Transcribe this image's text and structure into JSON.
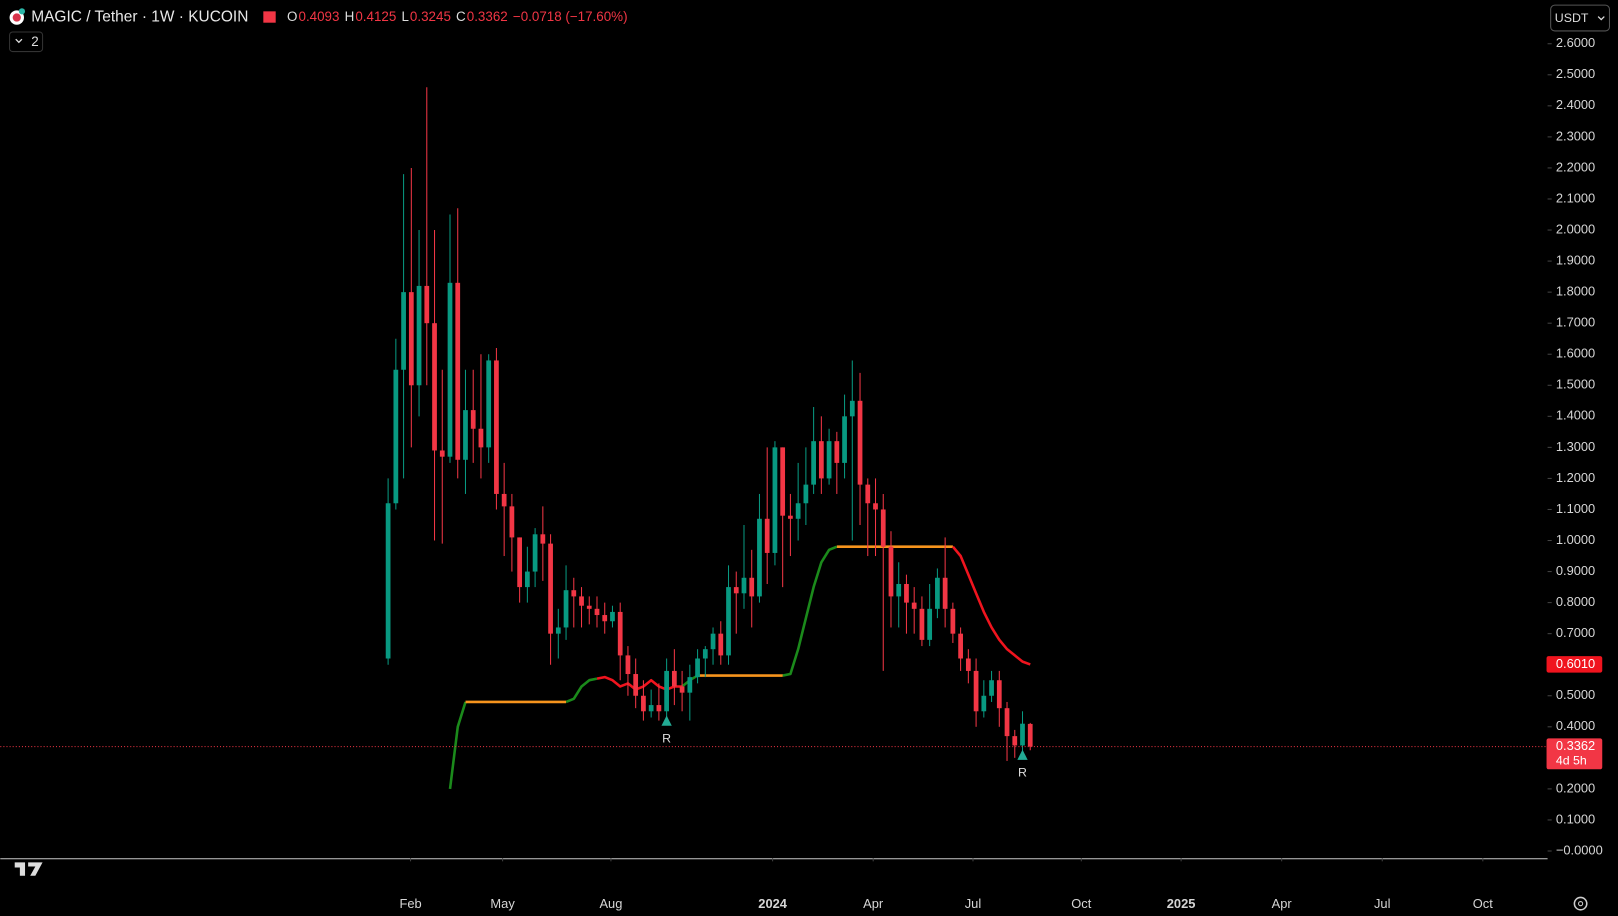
{
  "chart_data": {
    "type": "candlestick",
    "title": "MAGIC / Tether · 1W · KUCOIN",
    "ohlc": [
      {
        "label": "O",
        "value": "0.4093"
      },
      {
        "label": "H",
        "value": "0.4125"
      },
      {
        "label": "L",
        "value": "0.3245"
      },
      {
        "label": "C",
        "value": "0.3362"
      }
    ],
    "change": "−0.0718 (−17.60%)",
    "indicators_count": "2",
    "currency": "USDT",
    "up_color": "#089981",
    "down_color": "#f23645",
    "grid": false,
    "categories": [
      null,
      null,
      null,
      null,
      null,
      null,
      null,
      null,
      null,
      null,
      null,
      null,
      null,
      null,
      null,
      null,
      null,
      null,
      null,
      null,
      null,
      null,
      null,
      null,
      null,
      null,
      null,
      null,
      null,
      null,
      null,
      null,
      null,
      null,
      null,
      null,
      null,
      null,
      null,
      null,
      null,
      null,
      null,
      null,
      null,
      null,
      null,
      null,
      null,
      null,
      null,
      null,
      null,
      null,
      null,
      null,
      null,
      null,
      null,
      null,
      null,
      null,
      null,
      null,
      null,
      null,
      null,
      null,
      null,
      null,
      null,
      null,
      null,
      null,
      null,
      null,
      null,
      null,
      null,
      null,
      null,
      null,
      null,
      null
    ],
    "open": [
      0.62,
      1.12,
      1.55,
      1.8,
      1.5,
      1.82,
      1.7,
      1.29,
      1.27,
      1.83,
      1.26,
      1.42,
      1.36,
      1.3,
      1.58,
      1.15,
      1.11,
      1.01,
      0.85,
      0.9,
      1.02,
      0.99,
      0.7,
      0.72,
      0.84,
      0.82,
      0.79,
      0.78,
      0.76,
      0.74,
      0.77,
      0.63,
      0.57,
      0.5,
      0.45,
      0.47,
      0.45,
      0.58,
      0.53,
      0.51,
      0.56,
      0.62,
      0.65,
      0.7,
      0.63,
      0.85,
      0.83,
      0.88,
      0.82,
      1.07,
      0.96,
      1.3,
      1.08,
      1.07,
      1.12,
      1.18,
      1.32,
      1.2,
      1.32,
      1.25,
      1.4,
      1.45,
      1.18,
      1.12,
      1.1,
      0.98,
      0.82,
      0.86,
      0.8,
      0.78,
      0.68,
      0.78,
      0.88,
      0.78,
      0.7,
      0.62,
      0.58,
      0.45,
      0.5,
      0.55,
      0.46,
      0.37,
      0.34,
      0.4093
    ],
    "high": [
      1.2,
      1.65,
      2.18,
      2.2,
      2.0,
      2.46,
      2.0,
      1.55,
      2.05,
      2.07,
      1.55,
      1.55,
      1.6,
      1.6,
      1.62,
      1.25,
      1.15,
      1.01,
      0.98,
      1.04,
      1.11,
      1.02,
      0.78,
      0.92,
      0.88,
      0.85,
      0.82,
      0.82,
      0.8,
      0.79,
      0.8,
      0.66,
      0.62,
      0.55,
      0.52,
      0.54,
      0.62,
      0.65,
      0.58,
      0.6,
      0.65,
      0.66,
      0.72,
      0.74,
      0.92,
      0.9,
      1.05,
      0.97,
      1.15,
      1.3,
      1.32,
      1.3,
      1.15,
      1.25,
      1.3,
      1.43,
      1.4,
      1.36,
      1.35,
      1.47,
      1.58,
      1.54,
      1.2,
      1.2,
      1.15,
      1.03,
      0.93,
      0.89,
      0.85,
      0.82,
      0.86,
      0.91,
      1.01,
      0.8,
      0.72,
      0.65,
      0.62,
      0.55,
      0.58,
      0.58,
      0.48,
      0.39,
      0.45,
      0.4125
    ],
    "low": [
      0.6,
      1.1,
      1.2,
      1.3,
      1.4,
      1.5,
      1.0,
      0.99,
      1.25,
      1.2,
      1.15,
      1.25,
      1.2,
      1.25,
      1.1,
      0.95,
      0.9,
      0.8,
      0.8,
      0.85,
      0.87,
      0.6,
      0.62,
      0.68,
      0.72,
      0.72,
      0.73,
      0.72,
      0.7,
      0.72,
      0.55,
      0.5,
      0.46,
      0.42,
      0.43,
      0.42,
      0.43,
      0.47,
      0.45,
      0.42,
      0.54,
      0.56,
      0.6,
      0.6,
      0.6,
      0.7,
      0.78,
      0.72,
      0.8,
      0.86,
      0.92,
      0.85,
      0.95,
      1.0,
      1.05,
      1.15,
      1.15,
      1.18,
      1.15,
      1.2,
      1.0,
      1.05,
      0.95,
      0.95,
      0.58,
      0.72,
      0.72,
      0.7,
      0.7,
      0.66,
      0.66,
      0.75,
      0.72,
      0.67,
      0.58,
      0.54,
      0.4,
      0.43,
      0.48,
      0.4,
      0.29,
      0.3,
      0.32,
      0.3245
    ],
    "close": [
      1.12,
      1.55,
      1.8,
      1.5,
      1.82,
      1.7,
      1.29,
      1.27,
      1.83,
      1.26,
      1.42,
      1.36,
      1.3,
      1.58,
      1.15,
      1.11,
      1.01,
      0.85,
      0.9,
      1.02,
      0.99,
      0.7,
      0.72,
      0.84,
      0.82,
      0.79,
      0.78,
      0.76,
      0.74,
      0.77,
      0.63,
      0.57,
      0.5,
      0.45,
      0.47,
      0.45,
      0.58,
      0.53,
      0.51,
      0.56,
      0.62,
      0.65,
      0.7,
      0.63,
      0.85,
      0.83,
      0.88,
      0.82,
      1.07,
      0.96,
      1.3,
      1.08,
      1.07,
      1.12,
      1.18,
      1.32,
      1.2,
      1.32,
      1.25,
      1.4,
      1.45,
      1.18,
      1.12,
      1.1,
      0.98,
      0.82,
      0.86,
      0.8,
      0.78,
      0.68,
      0.78,
      0.88,
      0.78,
      0.7,
      0.62,
      0.58,
      0.45,
      0.5,
      0.55,
      0.46,
      0.37,
      0.34,
      0.41,
      0.3362
    ],
    "series": [
      {
        "color": "#1b8a1b",
        "values": [
          null,
          null,
          null,
          null,
          null,
          null,
          null,
          null,
          0.2,
          0.4,
          0.48,
          null,
          null,
          null,
          null,
          null,
          null,
          null,
          null,
          null,
          null,
          null,
          null,
          0.48,
          0.49,
          0.53,
          0.55,
          0.555,
          null,
          null,
          null,
          null,
          null,
          null,
          null,
          null,
          null,
          null,
          0.53,
          0.55,
          0.565,
          null,
          null,
          null,
          null,
          null,
          null,
          null,
          null,
          null,
          null,
          0.565,
          0.57,
          0.65,
          0.75,
          0.85,
          0.93,
          0.97,
          0.98,
          null,
          null,
          null,
          null,
          null,
          null,
          null,
          null,
          null,
          null,
          null,
          null,
          null,
          null,
          null,
          null,
          null,
          null,
          null,
          null,
          null,
          null,
          null,
          null,
          null
        ]
      },
      {
        "color": "#f7941d",
        "values": [
          null,
          null,
          null,
          null,
          null,
          null,
          null,
          null,
          null,
          null,
          0.48,
          0.48,
          0.48,
          0.48,
          0.48,
          0.48,
          0.48,
          0.48,
          0.48,
          0.48,
          0.48,
          0.48,
          0.48,
          0.48,
          null,
          null,
          null,
          null,
          null,
          null,
          null,
          null,
          null,
          null,
          null,
          null,
          null,
          null,
          null,
          null,
          0.565,
          0.565,
          0.565,
          0.565,
          0.565,
          0.565,
          0.565,
          0.565,
          0.565,
          0.565,
          0.565,
          0.565,
          null,
          null,
          null,
          null,
          null,
          null,
          0.98,
          0.98,
          0.98,
          0.98,
          0.98,
          0.98,
          0.98,
          0.98,
          0.98,
          0.98,
          0.98,
          0.98,
          0.98,
          0.98,
          0.98,
          0.98,
          null,
          null,
          null,
          null,
          null,
          null,
          null,
          null,
          null,
          null
        ]
      },
      {
        "color": "#f0141e",
        "values": [
          null,
          null,
          null,
          null,
          null,
          null,
          null,
          null,
          null,
          null,
          null,
          null,
          null,
          null,
          null,
          null,
          null,
          null,
          null,
          null,
          null,
          null,
          null,
          null,
          null,
          null,
          null,
          0.555,
          0.56,
          0.55,
          0.53,
          0.54,
          0.52,
          0.53,
          0.55,
          0.53,
          0.52,
          0.53,
          0.53,
          null,
          null,
          null,
          null,
          null,
          null,
          null,
          null,
          null,
          null,
          null,
          null,
          null,
          null,
          null,
          null,
          null,
          null,
          null,
          null,
          null,
          null,
          null,
          null,
          null,
          null,
          null,
          null,
          null,
          null,
          null,
          null,
          null,
          null,
          0.98,
          0.95,
          0.89,
          0.83,
          0.77,
          0.72,
          0.68,
          0.65,
          0.63,
          0.61,
          0.601
        ]
      }
    ],
    "annotations": [
      {
        "text": "R",
        "x": 36,
        "y": 0.42
      },
      {
        "text": "R",
        "x": 82,
        "y": 0.31
      }
    ],
    "price_labels": [
      {
        "value": 0.601,
        "label": "0.6010",
        "color": "#f0141e"
      },
      {
        "value": 0.3362,
        "label": "0.3362",
        "sub": "4d 5h",
        "color": "#f23645"
      }
    ],
    "xlim": [
      -50.13,
      149.87
    ],
    "xticks": [
      {
        "value": 2.9,
        "label": "Feb"
      },
      {
        "value": 14.8,
        "label": "May"
      },
      {
        "value": 28.8,
        "label": "Aug"
      },
      {
        "value": 49.7,
        "label": "2024"
      },
      {
        "value": 62.7,
        "label": "Apr"
      },
      {
        "value": 75.6,
        "label": "Jul"
      },
      {
        "value": 89.6,
        "label": "Oct"
      },
      {
        "value": 102.5,
        "label": "2025"
      },
      {
        "value": 115.5,
        "label": "Apr"
      },
      {
        "value": 128.5,
        "label": "Jul"
      },
      {
        "value": 141.5,
        "label": "Oct"
      }
    ],
    "ylim": [
      -0.0233,
      2.7409
    ],
    "yticks": [
      {
        "value": 0,
        "label": "−0.0000"
      },
      {
        "value": 0.1,
        "label": "0.1000"
      },
      {
        "value": 0.2,
        "label": "0.2000"
      },
      {
        "value": 0.3,
        "label": "0.3000"
      },
      {
        "value": 0.4,
        "label": "0.4000"
      },
      {
        "value": 0.5,
        "label": "0.5000"
      },
      {
        "value": 0.6,
        "label": "0.6000"
      },
      {
        "value": 0.7,
        "label": "0.7000"
      },
      {
        "value": 0.8,
        "label": "0.8000"
      },
      {
        "value": 0.9,
        "label": "0.9000"
      },
      {
        "value": 1.0,
        "label": "1.0000"
      },
      {
        "value": 1.1,
        "label": "1.1000"
      },
      {
        "value": 1.2,
        "label": "1.2000"
      },
      {
        "value": 1.3,
        "label": "1.3000"
      },
      {
        "value": 1.4,
        "label": "1.4000"
      },
      {
        "value": 1.5,
        "label": "1.5000"
      },
      {
        "value": 1.6,
        "label": "1.6000"
      },
      {
        "value": 1.7,
        "label": "1.7000"
      },
      {
        "value": 1.8,
        "label": "1.8000"
      },
      {
        "value": 1.9,
        "label": "1.9000"
      },
      {
        "value": 2.0,
        "label": "2.0000"
      },
      {
        "value": 2.1,
        "label": "2.1000"
      },
      {
        "value": 2.2,
        "label": "2.2000"
      },
      {
        "value": 2.3,
        "label": "2.3000"
      },
      {
        "value": 2.4,
        "label": "2.4000"
      },
      {
        "value": 2.5,
        "label": "2.5000"
      },
      {
        "value": 2.6,
        "label": "2.6000"
      }
    ]
  }
}
